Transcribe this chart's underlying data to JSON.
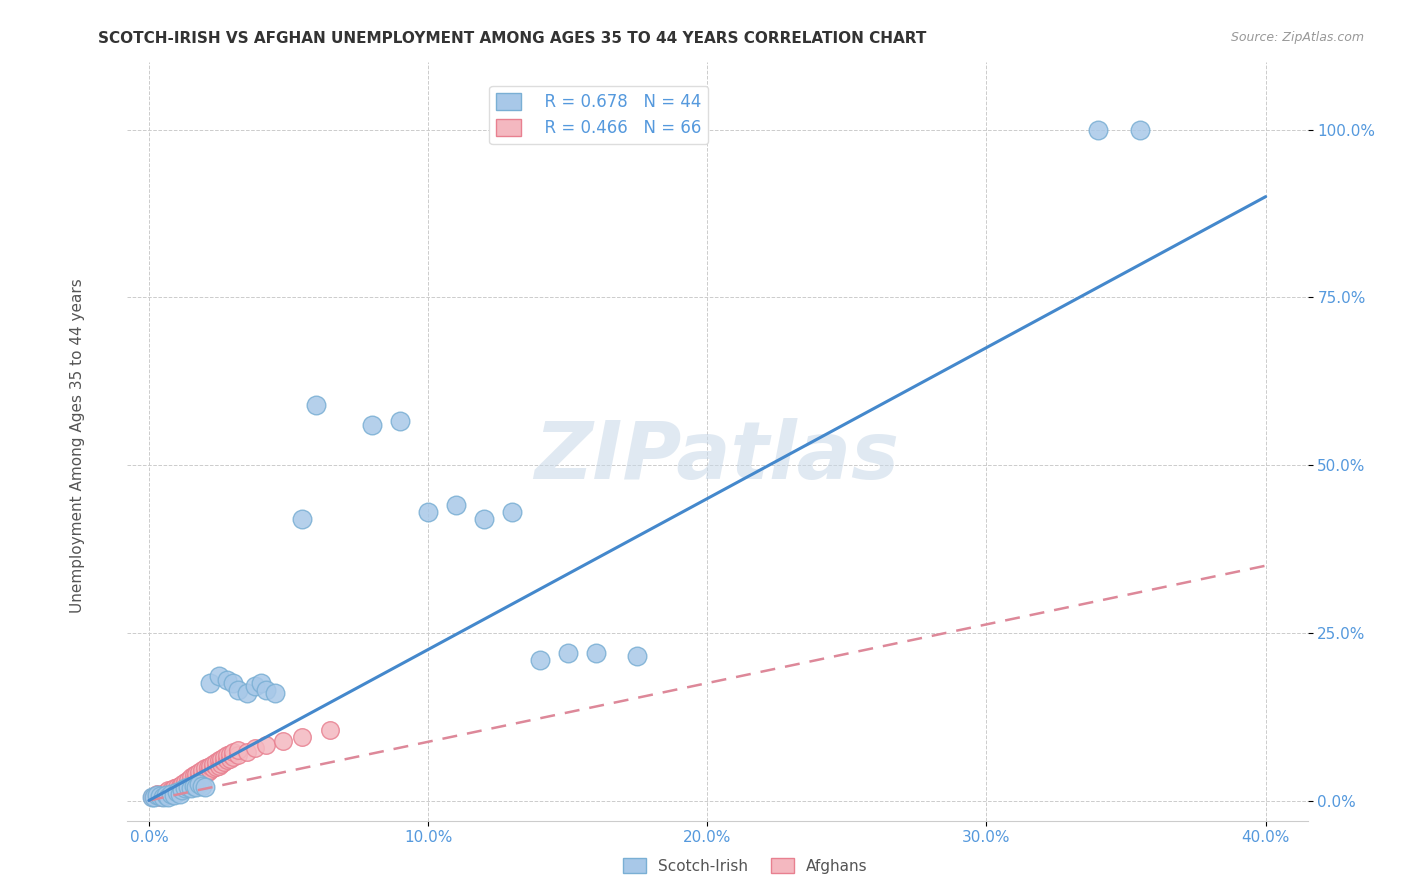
{
  "title": "SCOTCH-IRISH VS AFGHAN UNEMPLOYMENT AMONG AGES 35 TO 44 YEARS CORRELATION CHART",
  "source": "Source: ZipAtlas.com",
  "xlabel_ticks": [
    "0.0%",
    "10.0%",
    "20.0%",
    "30.0%",
    "40.0%"
  ],
  "ylabel_ticks": [
    "0.0%",
    "25.0%",
    "50.0%",
    "75.0%",
    "100.0%"
  ],
  "xlabel_vals": [
    0.0,
    0.1,
    0.2,
    0.3,
    0.4
  ],
  "ylabel_vals": [
    0.0,
    0.25,
    0.5,
    0.75,
    1.0
  ],
  "xlim": [
    -0.008,
    0.415
  ],
  "ylim": [
    -0.03,
    1.1
  ],
  "ylabel": "Unemployment Among Ages 35 to 44 years",
  "scotch_irish_color": "#a8c8e8",
  "afghan_color": "#f4b8c0",
  "scotch_irish_edge_color": "#7aafd4",
  "afghan_edge_color": "#e88090",
  "scotch_irish_line_color": "#4488cc",
  "afghan_line_color": "#dd8899",
  "legend_R_scotch": "R = 0.678",
  "legend_N_scotch": "N = 44",
  "legend_R_afghan": "R = 0.466",
  "legend_N_afghan": "N = 66",
  "watermark": "ZIPatlas",
  "tick_color": "#5599dd",
  "scotch_irish_scatter": [
    [
      0.001,
      0.005
    ],
    [
      0.002,
      0.005
    ],
    [
      0.003,
      0.008
    ],
    [
      0.004,
      0.006
    ],
    [
      0.005,
      0.005
    ],
    [
      0.006,
      0.008
    ],
    [
      0.007,
      0.005
    ],
    [
      0.008,
      0.01
    ],
    [
      0.009,
      0.008
    ],
    [
      0.01,
      0.012
    ],
    [
      0.011,
      0.01
    ],
    [
      0.012,
      0.015
    ],
    [
      0.013,
      0.018
    ],
    [
      0.014,
      0.02
    ],
    [
      0.015,
      0.018
    ],
    [
      0.016,
      0.022
    ],
    [
      0.017,
      0.02
    ],
    [
      0.018,
      0.025
    ],
    [
      0.019,
      0.022
    ],
    [
      0.02,
      0.02
    ],
    [
      0.022,
      0.175
    ],
    [
      0.025,
      0.185
    ],
    [
      0.028,
      0.18
    ],
    [
      0.03,
      0.175
    ],
    [
      0.032,
      0.165
    ],
    [
      0.035,
      0.16
    ],
    [
      0.038,
      0.17
    ],
    [
      0.04,
      0.175
    ],
    [
      0.042,
      0.165
    ],
    [
      0.045,
      0.16
    ],
    [
      0.055,
      0.42
    ],
    [
      0.06,
      0.59
    ],
    [
      0.08,
      0.56
    ],
    [
      0.09,
      0.565
    ],
    [
      0.1,
      0.43
    ],
    [
      0.11,
      0.44
    ],
    [
      0.12,
      0.42
    ],
    [
      0.13,
      0.43
    ],
    [
      0.14,
      0.21
    ],
    [
      0.15,
      0.22
    ],
    [
      0.16,
      0.22
    ],
    [
      0.175,
      0.215
    ],
    [
      0.34,
      1.0
    ],
    [
      0.355,
      1.0
    ]
  ],
  "afghan_scatter": [
    [
      0.001,
      0.005
    ],
    [
      0.002,
      0.005
    ],
    [
      0.003,
      0.008
    ],
    [
      0.003,
      0.01
    ],
    [
      0.004,
      0.005
    ],
    [
      0.004,
      0.008
    ],
    [
      0.005,
      0.005
    ],
    [
      0.005,
      0.01
    ],
    [
      0.006,
      0.008
    ],
    [
      0.006,
      0.012
    ],
    [
      0.007,
      0.008
    ],
    [
      0.007,
      0.015
    ],
    [
      0.008,
      0.01
    ],
    [
      0.008,
      0.015
    ],
    [
      0.009,
      0.012
    ],
    [
      0.009,
      0.018
    ],
    [
      0.01,
      0.015
    ],
    [
      0.01,
      0.02
    ],
    [
      0.011,
      0.018
    ],
    [
      0.011,
      0.022
    ],
    [
      0.012,
      0.02
    ],
    [
      0.012,
      0.025
    ],
    [
      0.013,
      0.022
    ],
    [
      0.013,
      0.028
    ],
    [
      0.014,
      0.025
    ],
    [
      0.014,
      0.03
    ],
    [
      0.015,
      0.028
    ],
    [
      0.015,
      0.035
    ],
    [
      0.016,
      0.03
    ],
    [
      0.016,
      0.038
    ],
    [
      0.017,
      0.032
    ],
    [
      0.017,
      0.04
    ],
    [
      0.018,
      0.035
    ],
    [
      0.018,
      0.042
    ],
    [
      0.019,
      0.038
    ],
    [
      0.019,
      0.045
    ],
    [
      0.02,
      0.04
    ],
    [
      0.02,
      0.048
    ],
    [
      0.021,
      0.042
    ],
    [
      0.021,
      0.05
    ],
    [
      0.022,
      0.045
    ],
    [
      0.022,
      0.052
    ],
    [
      0.023,
      0.048
    ],
    [
      0.023,
      0.055
    ],
    [
      0.024,
      0.05
    ],
    [
      0.024,
      0.058
    ],
    [
      0.025,
      0.052
    ],
    [
      0.025,
      0.06
    ],
    [
      0.026,
      0.055
    ],
    [
      0.026,
      0.062
    ],
    [
      0.027,
      0.058
    ],
    [
      0.027,
      0.065
    ],
    [
      0.028,
      0.06
    ],
    [
      0.028,
      0.068
    ],
    [
      0.029,
      0.062
    ],
    [
      0.029,
      0.07
    ],
    [
      0.03,
      0.065
    ],
    [
      0.03,
      0.072
    ],
    [
      0.032,
      0.068
    ],
    [
      0.032,
      0.075
    ],
    [
      0.035,
      0.072
    ],
    [
      0.038,
      0.078
    ],
    [
      0.042,
      0.082
    ],
    [
      0.048,
      0.088
    ],
    [
      0.055,
      0.095
    ],
    [
      0.065,
      0.105
    ]
  ],
  "si_line_x": [
    0.0,
    0.4
  ],
  "si_line_y": [
    0.0,
    0.9
  ],
  "af_line_x": [
    0.0,
    0.4
  ],
  "af_line_y": [
    0.0,
    0.35
  ]
}
